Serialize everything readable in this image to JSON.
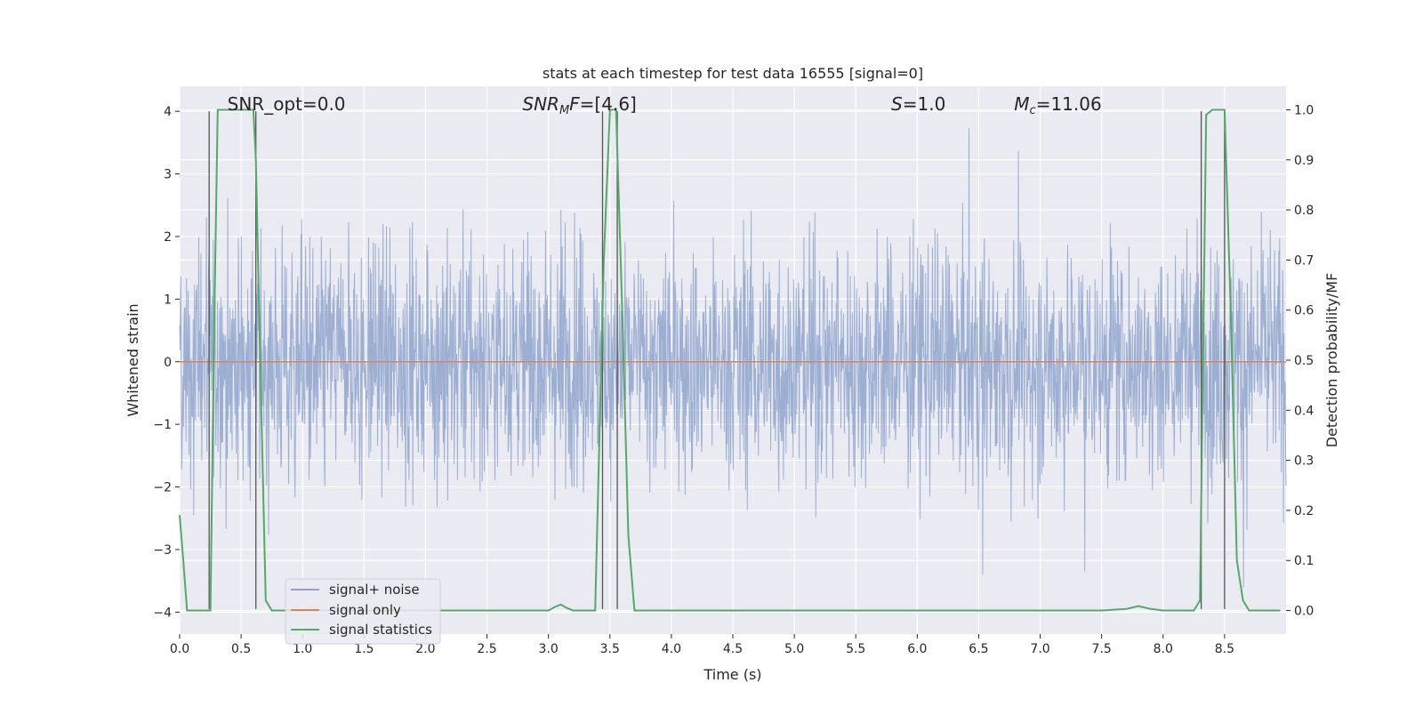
{
  "chart_data": {
    "type": "line",
    "title": "stats at each timestep for test data 16555 [signal=0]",
    "xlabel": "Time (s)",
    "ylabel": "Whitened strain",
    "ylabel_right": "Detection probability/MF",
    "xlim": [
      0.0,
      9.0
    ],
    "ylim": [
      -4.35,
      4.4
    ],
    "ylim_right": [
      -0.047,
      1.047
    ],
    "x_ticks": [
      0.0,
      0.5,
      1.0,
      1.5,
      2.0,
      2.5,
      3.0,
      3.5,
      4.0,
      4.5,
      5.0,
      5.5,
      6.0,
      6.5,
      7.0,
      7.5,
      8.0,
      8.5
    ],
    "y_ticks": [
      -4,
      -3,
      -2,
      -1,
      0,
      1,
      2,
      3,
      4
    ],
    "y_ticks_right": [
      0.0,
      0.1,
      0.2,
      0.3,
      0.4,
      0.5,
      0.6,
      0.7,
      0.8,
      0.9,
      1.0
    ],
    "grid": true,
    "legend_position": "lower-left",
    "annotations": [
      {
        "text": "SNR_opt=0.0",
        "x": 0.2
      },
      {
        "text": "SNR_MF=[4.6]",
        "x": 2.6
      },
      {
        "text": "S=1.0",
        "x": 5.6
      },
      {
        "text": "M_c=11.06",
        "x": 6.6
      }
    ],
    "detection_markers": [
      0.24,
      0.62,
      3.44,
      3.56,
      8.31,
      8.5
    ],
    "series": [
      {
        "name": "signal+ noise",
        "color": "#8ea3cc",
        "axis": "left",
        "description": "whitened noise trace, roughly within -2.7 to 2.9 with spikes up to 4.0"
      },
      {
        "name": "signal only",
        "color": "#dd8452",
        "axis": "left",
        "values_constant": 0
      },
      {
        "name": "signal statistics",
        "color": "#55a868",
        "axis": "right",
        "x": [
          0.0,
          0.03,
          0.06,
          0.1,
          0.15,
          0.2,
          0.25,
          0.28,
          0.31,
          0.4,
          0.5,
          0.6,
          0.62,
          0.66,
          0.7,
          0.75,
          0.8,
          1.0,
          1.5,
          2.0,
          2.5,
          3.0,
          3.05,
          3.1,
          3.15,
          3.2,
          3.3,
          3.38,
          3.45,
          3.5,
          3.55,
          3.6,
          3.65,
          3.7,
          3.8,
          3.9,
          4.5,
          5.0,
          5.5,
          6.0,
          6.5,
          7.0,
          7.5,
          7.7,
          7.8,
          7.9,
          8.0,
          8.1,
          8.25,
          8.3,
          8.35,
          8.4,
          8.5,
          8.55,
          8.6,
          8.65,
          8.7,
          8.8,
          8.95
        ],
        "y": [
          0.19,
          0.1,
          0.0,
          0.0,
          0.0,
          0.0,
          0.0,
          0.55,
          1.0,
          1.0,
          1.0,
          1.0,
          0.9,
          0.45,
          0.02,
          0.0,
          0.0,
          0.0,
          0.0,
          0.0,
          0.0,
          0.0,
          0.007,
          0.012,
          0.005,
          0.0,
          0.0,
          0.0,
          0.7,
          1.0,
          1.0,
          0.6,
          0.15,
          0.0,
          0.0,
          0.0,
          0.0,
          0.0,
          0.0,
          0.0,
          0.0,
          0.0,
          0.0,
          0.003,
          0.009,
          0.003,
          0.0,
          0.0,
          0.0,
          0.02,
          0.99,
          1.0,
          1.0,
          0.6,
          0.1,
          0.02,
          0.0,
          0.0,
          0.0
        ]
      }
    ]
  }
}
